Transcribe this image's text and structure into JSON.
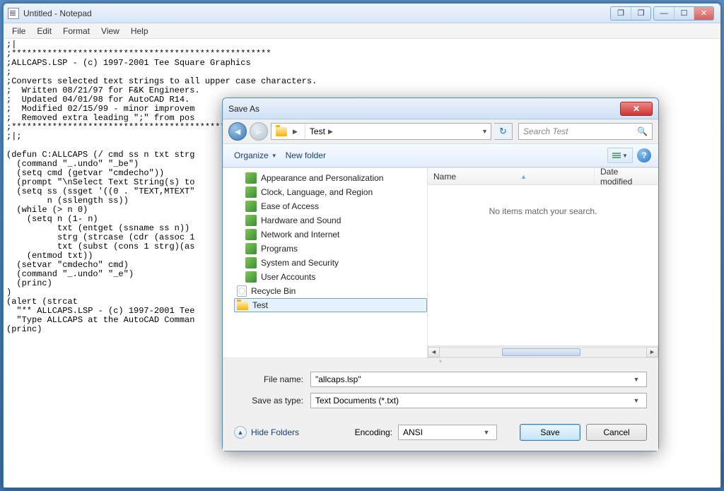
{
  "notepad": {
    "title": "Untitled - Notepad",
    "menus": [
      "File",
      "Edit",
      "Format",
      "View",
      "Help"
    ],
    "content": ";|\n;***************************************************\n;ALLCAPS.LSP - (c) 1997-2001 Tee Square Graphics\n;\n;Converts selected text strings to all upper case characters.\n;  Written 08/21/97 for F&K Engineers.\n;  Updated 04/01/98 for AutoCAD R14.\n;  Modified 02/15/99 - minor improvem\n;  Removed extra leading \";\" from pos\n;***************************************************\n;|;\n\n(defun C:ALLCAPS (/ cmd ss n txt strg\n  (command \"_.undo\" \"_be\")\n  (setq cmd (getvar \"cmdecho\"))\n  (prompt \"\\nSelect Text String(s) to\n  (setq ss (ssget '((0 . \"TEXT,MTEXT\"\n        n (sslength ss))\n  (while (> n 0)\n    (setq n (1- n)\n          txt (entget (ssname ss n))\n          strg (strcase (cdr (assoc 1\n          txt (subst (cons 1 strg)(as\n    (entmod txt))\n  (setvar \"cmdecho\" cmd)\n  (command \"_.undo\" \"_e\")\n  (princ)\n)\n(alert (strcat\n  \"** ALLCAPS.LSP - (c) 1997-2001 Tee\n  \"Type ALLCAPS at the AutoCAD Comman\n(princ)"
  },
  "saveAs": {
    "title": "Save As",
    "breadcrumb": {
      "folder": "Test"
    },
    "search": {
      "placeholder": "Search Test"
    },
    "toolbar": {
      "organize": "Organize",
      "newFolder": "New folder"
    },
    "tree": [
      {
        "label": "Appearance and Personalization",
        "icon": "cp"
      },
      {
        "label": "Clock, Language, and Region",
        "icon": "cp"
      },
      {
        "label": "Ease of Access",
        "icon": "cp"
      },
      {
        "label": "Hardware and Sound",
        "icon": "cp"
      },
      {
        "label": "Network and Internet",
        "icon": "cp"
      },
      {
        "label": "Programs",
        "icon": "cp"
      },
      {
        "label": "System and Security",
        "icon": "cp"
      },
      {
        "label": "User Accounts",
        "icon": "cp"
      },
      {
        "label": "Recycle Bin",
        "icon": "recycle",
        "less": true
      },
      {
        "label": "Test",
        "icon": "folder",
        "selected": true,
        "less": true
      }
    ],
    "list": {
      "columns": {
        "name": "Name",
        "dateModified": "Date modified"
      },
      "empty": "No items match your search."
    },
    "fields": {
      "fileNameLabel": "File name:",
      "fileNameValue": "\"allcaps.lsp\"",
      "saveTypeLabel": "Save as type:",
      "saveTypeValue": "Text Documents (*.txt)"
    },
    "footer": {
      "hideFolders": "Hide Folders",
      "encodingLabel": "Encoding:",
      "encodingValue": "ANSI",
      "save": "Save",
      "cancel": "Cancel"
    }
  }
}
